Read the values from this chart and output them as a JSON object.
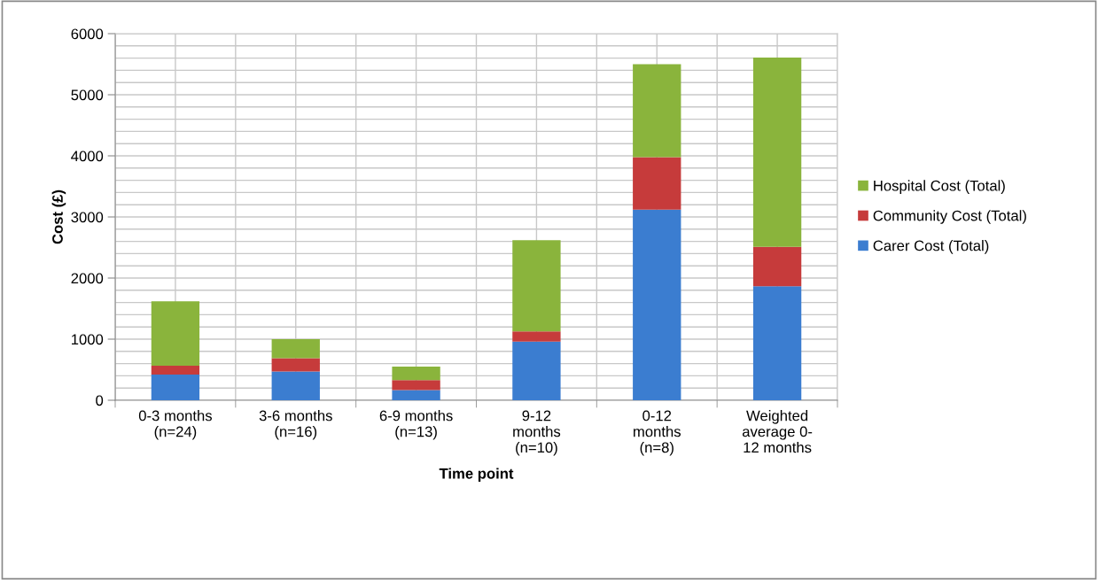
{
  "chart_data": {
    "type": "bar",
    "stacked": true,
    "xlabel": "Time point",
    "ylabel": "Cost (£)",
    "categories": [
      "0-3 months\n(n=24)",
      "3-6 months\n(n=16)",
      "6-9 months\n(n=13)",
      "9-12\nmonths\n(n=10)",
      "0-12\nmonths\n(n=8)",
      "Weighted\naverage 0-\n12 months"
    ],
    "series": [
      {
        "name": "Carer Cost (Total)",
        "color": "#3b7dd0",
        "values": [
          420,
          470,
          165,
          960,
          3120,
          1865
        ]
      },
      {
        "name": "Community Cost (Total)",
        "color": "#c63b3b",
        "values": [
          145,
          220,
          165,
          165,
          860,
          645
        ]
      },
      {
        "name": "Hospital Cost (Total)",
        "color": "#8ab43c",
        "values": [
          1055,
          310,
          220,
          1495,
          1520,
          3100
        ]
      }
    ],
    "ylim": [
      0,
      6000
    ],
    "yticks": [
      0,
      1000,
      2000,
      3000,
      4000,
      5000,
      6000
    ],
    "grid": true,
    "legend": "right"
  }
}
